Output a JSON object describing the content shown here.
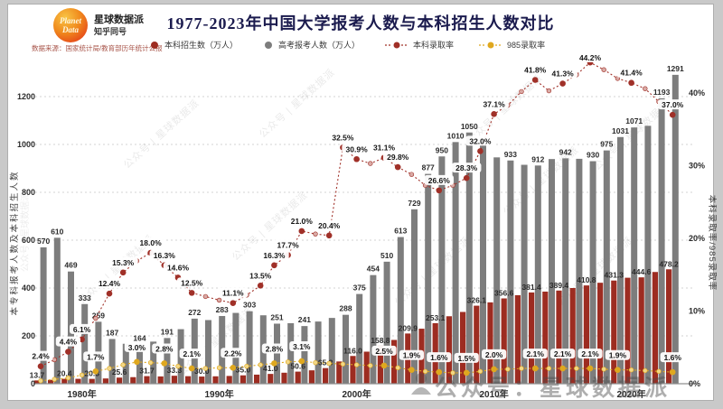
{
  "header": {
    "logo_line1": "Planet",
    "logo_line2": "Data",
    "brand_name": "星球数据派",
    "brand_sub": "知乎同号",
    "title": "1977-2023年中国大学报考人数与本科招生人数对比",
    "source": "数据来源：国家统计局/教育部历年统计公报"
  },
  "legend": {
    "items": [
      {
        "label": "本科招生数（万人）",
        "type": "bar",
        "color": "#9d2c21"
      },
      {
        "label": "高考报考人数（万人）",
        "type": "bar",
        "color": "#7d7d7d"
      },
      {
        "label": "本科录取率",
        "type": "line",
        "color": "#a03028"
      },
      {
        "label": "985录取率",
        "type": "line",
        "color": "#dfa81f"
      }
    ]
  },
  "watermarks": {
    "diagonal_text": "公众号 | 星球数据派",
    "bottom_text": "公众号：星球数据派"
  },
  "chart_data": {
    "type": "bar+line combo",
    "title": "1977-2023年中国大学报考人数与本科招生人数对比",
    "x_years": [
      1977,
      1978,
      1979,
      1980,
      1981,
      1982,
      1983,
      1984,
      1985,
      1986,
      1987,
      1988,
      1989,
      1990,
      1991,
      1992,
      1993,
      1994,
      1995,
      1996,
      1997,
      1998,
      1999,
      2000,
      2001,
      2002,
      2003,
      2004,
      2005,
      2006,
      2007,
      2008,
      2009,
      2010,
      2011,
      2012,
      2013,
      2014,
      2015,
      2016,
      2017,
      2018,
      2019,
      2020,
      2021,
      2022,
      2023
    ],
    "left_axis": {
      "title": "本专科报考人数及本科招生人数",
      "ticks": [
        0,
        200,
        400,
        600,
        800,
        1000,
        1200
      ]
    },
    "right_axis": {
      "title": "本科录取率/985录取率",
      "ticks_pct": [
        0,
        10,
        20,
        30,
        40
      ]
    },
    "x_axis": {
      "tick_years": [
        1980,
        1990,
        2000,
        2010,
        2020
      ],
      "suffix": "年"
    },
    "series": [
      {
        "name": "本科招生数（万人）",
        "type": "bar",
        "color": "#9d2c21",
        "values": [
          13.7,
          16,
          20.4,
          20.5,
          20.3,
          22,
          25.6,
          27.5,
          31.7,
          30.5,
          33.3,
          31.5,
          30,
          31,
          32.5,
          35,
          38,
          41,
          46,
          50.6,
          56,
          65.3,
          93,
          116,
          134,
          158.8,
          183,
          209.9,
          230,
          253.1,
          282,
          300,
          326.1,
          340,
          356.6,
          370,
          381.4,
          385,
          389.4,
          400,
          410.8,
          422,
          431.3,
          443,
          444.6,
          467,
          478.2
        ],
        "labels": [
          "13.7",
          null,
          "20.4",
          null,
          "20.3",
          null,
          "25.6",
          null,
          "31.7",
          null,
          "33.3",
          null,
          "30.0",
          null,
          null,
          "35.0",
          null,
          "41.0",
          null,
          "50.6",
          null,
          "65.3",
          null,
          "116.0",
          null,
          "158.8",
          null,
          "209.9",
          null,
          "253.1",
          null,
          null,
          "326.1",
          null,
          "356.6",
          null,
          "381.4",
          null,
          "389.4",
          null,
          "410.8",
          null,
          "431.3",
          null,
          "444.6",
          null,
          "478.2"
        ]
      },
      {
        "name": "高考报考人数（万人）",
        "type": "bar",
        "color": "#7d7d7d",
        "values": [
          570,
          610,
          469,
          333,
          259,
          187,
          167,
          164,
          176,
          191,
          228,
          272,
          266,
          283,
          296,
          303,
          286,
          251,
          253,
          241,
          260,
          275,
          288,
          375,
          454,
          510,
          613,
          729,
          877,
          950,
          1010,
          1050,
          1020,
          946,
          933,
          915,
          912,
          939,
          942,
          940,
          930,
          975,
          1031,
          1071,
          1078,
          1193,
          1291
        ],
        "labels": [
          "570",
          "610",
          "469",
          "333",
          "259",
          "187",
          null,
          "164",
          null,
          "191",
          null,
          "272",
          null,
          "283",
          null,
          "303",
          null,
          "251",
          null,
          "241",
          null,
          null,
          "288",
          "375",
          "454",
          "510",
          "613",
          "729",
          "877",
          "950",
          "1010",
          "1050",
          null,
          null,
          "933",
          null,
          "912",
          null,
          "942",
          null,
          "930",
          "975",
          "1031",
          "1071",
          null,
          "1193",
          "1291"
        ]
      },
      {
        "name": "本科录取率",
        "type": "line",
        "color": "#a03028",
        "values_pct": [
          2.4,
          3.3,
          4.4,
          6.1,
          9,
          12.4,
          15.3,
          16.9,
          18,
          16.3,
          14.6,
          12.5,
          12,
          11.5,
          11.1,
          12.2,
          13.5,
          16.3,
          17.7,
          21,
          20.6,
          20.4,
          32.5,
          30.9,
          30.3,
          31.1,
          29.8,
          28.8,
          27.3,
          26.6,
          27.3,
          28.3,
          32,
          37.1,
          38.3,
          40.2,
          41.8,
          40.3,
          41.3,
          42.5,
          44.2,
          43.2,
          42,
          41.4,
          40.6,
          38.8,
          37
        ],
        "labels": [
          "2.4%",
          null,
          "4.4%",
          "6.1%",
          null,
          "12.4%",
          "15.3%",
          null,
          "18.0%",
          "16.3%",
          "14.6%",
          "12.5%",
          null,
          null,
          "11.1%",
          null,
          "13.5%",
          "16.3%",
          "17.7%",
          "21.0%",
          null,
          "20.4%",
          "32.5%",
          "30.9%",
          null,
          "31.1%",
          "29.8%",
          null,
          null,
          "26.6%",
          null,
          "28.3%",
          "32.0%",
          "37.1%",
          null,
          null,
          "41.8%",
          null,
          "41.3%",
          null,
          "44.2%",
          null,
          null,
          "41.4%",
          null,
          null,
          "37.0%"
        ]
      },
      {
        "name": "985录取率",
        "type": "line",
        "color": "#dfa81f",
        "values_pct": [
          0.4,
          0.6,
          0.8,
          1.2,
          1.7,
          2.1,
          2.6,
          3,
          2.9,
          2.8,
          2.4,
          2.1,
          2.1,
          2.2,
          2.2,
          2.4,
          2.6,
          2.8,
          3,
          3.1,
          2.9,
          2.8,
          2.7,
          2.6,
          2.5,
          2.5,
          2.2,
          1.9,
          1.7,
          1.6,
          1.5,
          1.5,
          1.7,
          2,
          2,
          2.1,
          2.1,
          2.1,
          2.1,
          2.1,
          2.1,
          2,
          1.9,
          1.9,
          1.8,
          1.7,
          1.6
        ],
        "labels": [
          null,
          null,
          null,
          null,
          "1.7%",
          null,
          null,
          "3.0%",
          null,
          "2.8%",
          null,
          "2.1%",
          null,
          null,
          "2.2%",
          null,
          null,
          "2.8%",
          null,
          "3.1%",
          null,
          null,
          null,
          null,
          null,
          "2.5%",
          null,
          "1.9%",
          null,
          "1.6%",
          null,
          "1.5%",
          null,
          "2.0%",
          null,
          null,
          "2.1%",
          null,
          "2.1%",
          null,
          "2.1%",
          null,
          "1.9%",
          null,
          null,
          null,
          "1.6%"
        ]
      }
    ]
  }
}
